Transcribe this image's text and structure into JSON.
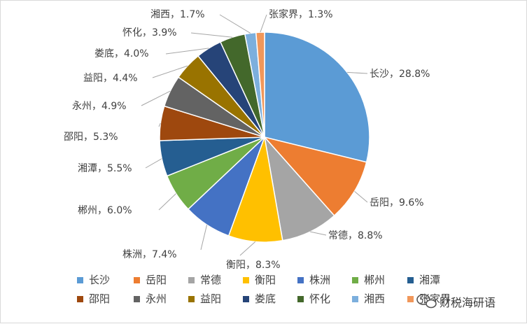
{
  "chart_data": {
    "type": "pie",
    "title": "",
    "categories": [
      "长沙",
      "岳阳",
      "常德",
      "衡阳",
      "株洲",
      "郴州",
      "湘潭",
      "邵阳",
      "永州",
      "益阳",
      "娄底",
      "怀化",
      "湘西",
      "张家界"
    ],
    "values": [
      28.8,
      9.6,
      8.8,
      8.3,
      7.4,
      6.0,
      5.5,
      5.3,
      4.9,
      4.4,
      4.0,
      3.9,
      1.7,
      1.3
    ],
    "data_labels": [
      "长沙，28.8%",
      "岳阳，9.6%",
      "常德，8.8%",
      "衡阳，8.3%",
      "株洲，7.4%",
      "郴州，6.0%",
      "湘潭，5.5%",
      "邵阳，5.3%",
      "永州，4.9%",
      "益阳，4.4%",
      "娄底，4.0%",
      "怀化，3.9%",
      "湘西，1.7%",
      "张家界，1.3%"
    ],
    "colors": [
      "#5B9BD5",
      "#ED7D31",
      "#A5A5A5",
      "#FFC000",
      "#4472C4",
      "#70AD47",
      "#255E91",
      "#9E480E",
      "#636363",
      "#997300",
      "#264478",
      "#43682B",
      "#7CAFDD",
      "#F1975A"
    ],
    "legend_position": "bottom",
    "start_angle_deg": 0,
    "direction": "clockwise"
  },
  "watermark": {
    "text": "财税海研语",
    "icon": "wechat-bubble-icon"
  }
}
